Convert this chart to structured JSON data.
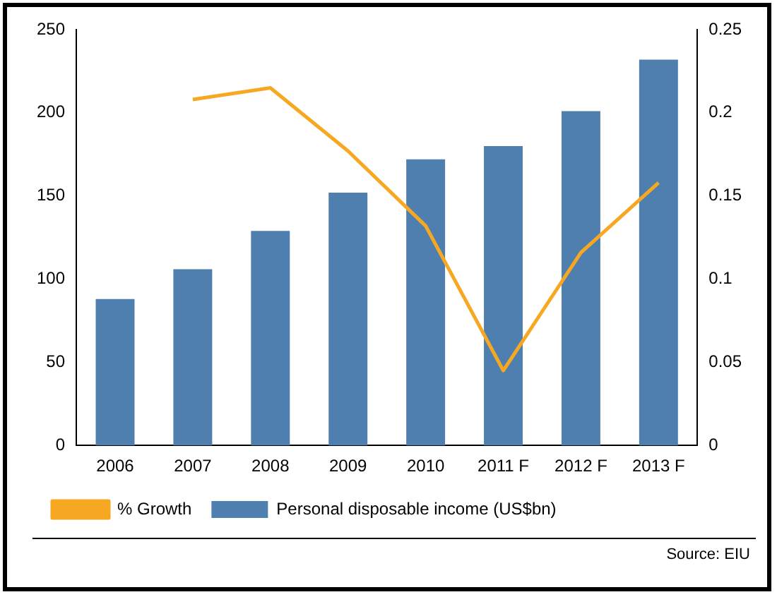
{
  "chart_data": {
    "type": "bar",
    "categories": [
      "2006",
      "2007",
      "2008",
      "2009",
      "2010",
      "2011 F",
      "2012 F",
      "2013 F"
    ],
    "series": [
      {
        "name": "Personal disposable income (US$bn)",
        "color": "#4f7fae",
        "values": [
          88,
          106,
          129,
          152,
          172,
          180,
          201,
          232
        ]
      },
      {
        "name": "% Growth",
        "type": "line",
        "axis": "y2",
        "color": "#f7a823",
        "values": [
          null,
          0.208,
          0.215,
          0.177,
          0.132,
          0.045,
          0.116,
          0.158
        ]
      }
    ],
    "ylim": [
      0,
      250
    ],
    "yticks": [
      0,
      50,
      100,
      150,
      200,
      250
    ],
    "y2lim": [
      0,
      0.25
    ],
    "y2ticks": [
      0,
      0.05,
      0.1,
      0.15,
      0.2,
      0.25
    ],
    "grid": false,
    "legend": "bottom",
    "marker": "none",
    "line_style": "solid",
    "annotations": [
      "Source: EIU"
    ]
  }
}
